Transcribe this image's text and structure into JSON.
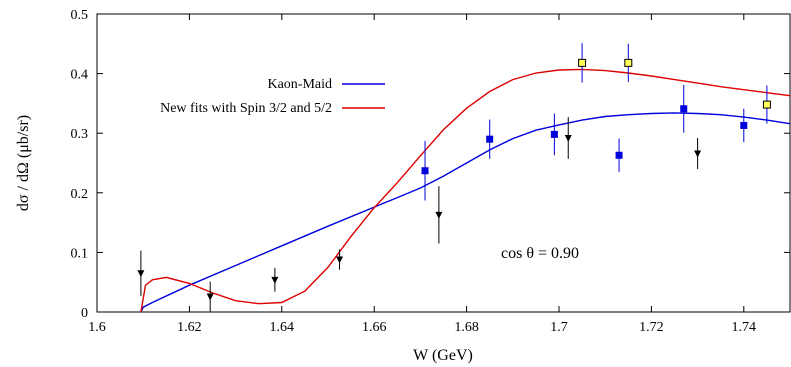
{
  "chart_data": {
    "type": "scatter",
    "xlabel": "W (GeV)",
    "ylabel": "dσ / dΩ  (μb/sr)",
    "xlim": [
      1.6,
      1.75
    ],
    "ylim": [
      0,
      0.5
    ],
    "x_ticks": [
      "1.6",
      "1.62",
      "1.64",
      "1.66",
      "1.68",
      "1.7",
      "1.72",
      "1.74"
    ],
    "y_ticks": [
      "0",
      "0.1",
      "0.2",
      "0.3",
      "0.4",
      "0.5"
    ],
    "x_tick_values": [
      1.6,
      1.62,
      1.64,
      1.66,
      1.68,
      1.7,
      1.72,
      1.74
    ],
    "y_tick_values": [
      0,
      0.1,
      0.2,
      0.3,
      0.4,
      0.5
    ],
    "annotation": "cos θ = 0.90",
    "legend_position": "top-left",
    "grid": false,
    "series": [
      {
        "name": "Kaon-Maid",
        "kind": "line",
        "color": "#0000dd",
        "x": [
          1.6095,
          1.61,
          1.612,
          1.62,
          1.63,
          1.64,
          1.65,
          1.66,
          1.665,
          1.67,
          1.675,
          1.68,
          1.685,
          1.69,
          1.695,
          1.7,
          1.705,
          1.71,
          1.715,
          1.72,
          1.725,
          1.73,
          1.735,
          1.74,
          1.745,
          1.75
        ],
        "y": [
          0.0,
          0.008,
          0.016,
          0.045,
          0.078,
          0.111,
          0.144,
          0.176,
          0.192,
          0.208,
          0.228,
          0.25,
          0.272,
          0.291,
          0.305,
          0.314,
          0.322,
          0.328,
          0.331,
          0.333,
          0.334,
          0.333,
          0.331,
          0.327,
          0.322,
          0.316
        ]
      },
      {
        "name": "New fits with Spin 3/2 and 5/2",
        "kind": "line",
        "color": "#dd0000",
        "x": [
          1.6095,
          1.6105,
          1.612,
          1.615,
          1.62,
          1.625,
          1.63,
          1.635,
          1.64,
          1.645,
          1.65,
          1.655,
          1.66,
          1.665,
          1.67,
          1.675,
          1.68,
          1.685,
          1.69,
          1.695,
          1.7,
          1.705,
          1.71,
          1.715,
          1.72,
          1.725,
          1.73,
          1.735,
          1.74,
          1.745,
          1.75
        ],
        "y": [
          0.0,
          0.045,
          0.054,
          0.058,
          0.048,
          0.032,
          0.019,
          0.014,
          0.016,
          0.035,
          0.075,
          0.127,
          0.175,
          0.217,
          0.262,
          0.306,
          0.342,
          0.37,
          0.39,
          0.401,
          0.406,
          0.407,
          0.405,
          0.401,
          0.396,
          0.39,
          0.384,
          0.378,
          0.373,
          0.368,
          0.363
        ]
      },
      {
        "name": "",
        "kind": "points",
        "marker": "square-blue",
        "color": "#0000dd",
        "points": [
          {
            "x": 1.671,
            "y": 0.237,
            "err": 0.05
          },
          {
            "x": 1.685,
            "y": 0.29,
            "err": 0.033
          },
          {
            "x": 1.699,
            "y": 0.298,
            "err": 0.035
          },
          {
            "x": 1.713,
            "y": 0.263,
            "err": 0.028
          },
          {
            "x": 1.727,
            "y": 0.341,
            "err": 0.04
          },
          {
            "x": 1.74,
            "y": 0.313,
            "err": 0.028
          }
        ]
      },
      {
        "name": "",
        "kind": "points",
        "marker": "square-yellow",
        "color": "#0000dd",
        "points": [
          {
            "x": 1.705,
            "y": 0.418,
            "err": 0.033
          },
          {
            "x": 1.715,
            "y": 0.418,
            "err": 0.032
          },
          {
            "x": 1.745,
            "y": 0.348,
            "err": 0.032
          }
        ]
      },
      {
        "name": "",
        "kind": "points",
        "marker": "triangle-down-black",
        "color": "#000000",
        "points": [
          {
            "x": 1.6095,
            "y": 0.065,
            "err": 0.038
          },
          {
            "x": 1.6245,
            "y": 0.026,
            "err": 0.025
          },
          {
            "x": 1.6385,
            "y": 0.054,
            "err": 0.02
          },
          {
            "x": 1.6525,
            "y": 0.088,
            "err": 0.017
          },
          {
            "x": 1.674,
            "y": 0.163,
            "err": 0.048
          },
          {
            "x": 1.702,
            "y": 0.292,
            "err": 0.035
          },
          {
            "x": 1.73,
            "y": 0.266,
            "err": 0.026
          }
        ]
      }
    ]
  }
}
